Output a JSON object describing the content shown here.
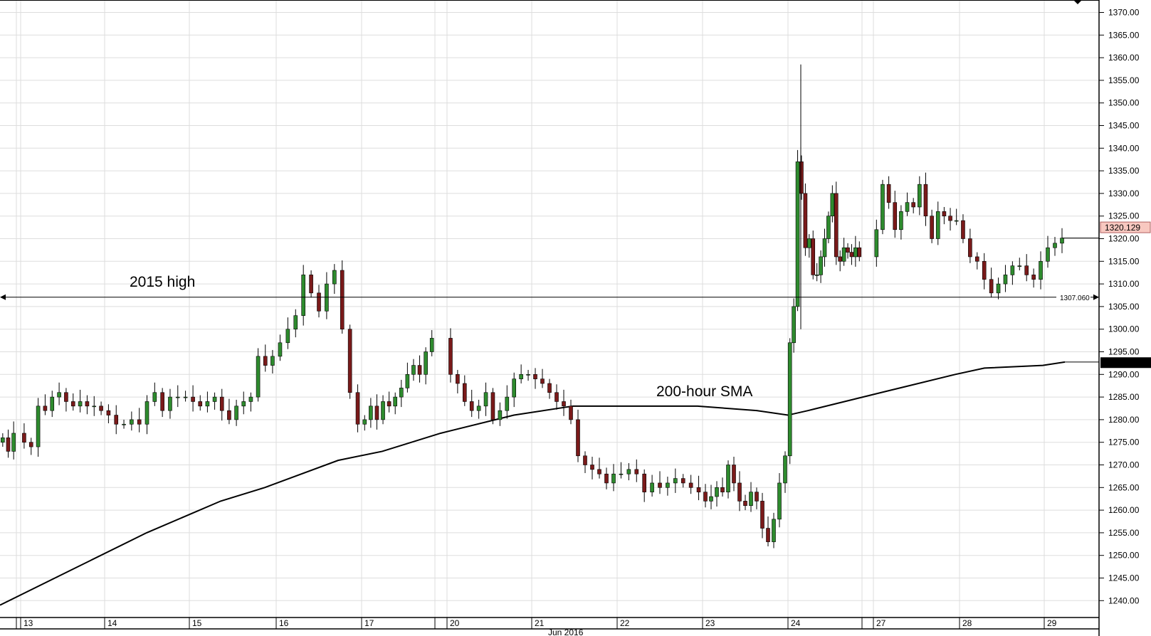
{
  "chart_data": {
    "type": "candlestick",
    "title": "",
    "xlabel": "Jun 2016",
    "ylabel": "",
    "ylim": [
      1237,
      1373
    ],
    "grid": true,
    "y_ticks": [
      "1370.00",
      "1365.00",
      "1360.00",
      "1355.00",
      "1350.00",
      "1345.00",
      "1340.00",
      "1335.00",
      "1330.00",
      "1325.00",
      "1320.00",
      "1315.00",
      "1310.00",
      "1305.00",
      "1300.00",
      "1295.00",
      "1290.00",
      "1285.00",
      "1280.00",
      "1275.00",
      "1270.00",
      "1265.00",
      "1260.00",
      "1255.00",
      "1250.00",
      "1245.00",
      "1240.00"
    ],
    "x_ticks": [
      "13",
      "14",
      "15",
      "16",
      "17",
      "20",
      "21",
      "22",
      "23",
      "24",
      "27",
      "28",
      "29"
    ],
    "month_label": "Jun 2016",
    "colors": {
      "up": "#2e8b2e",
      "down": "#7a1a1a",
      "sma": "#000000",
      "last_price_bg": "#f8c8c0",
      "sma_label_bg": "#000000"
    },
    "candle_closes_by_day": [
      {
        "day": "10",
        "closes": [
          1276,
          1273,
          1277
        ]
      },
      {
        "day": "13",
        "closes": [
          1275,
          1274,
          1283,
          1282,
          1285,
          1286,
          1284,
          1283,
          1284,
          1283,
          1283,
          1282
        ]
      },
      {
        "day": "14",
        "closes": [
          1281,
          1279,
          1279,
          1280,
          1279,
          1284,
          1286,
          1282,
          1285,
          1285,
          1285
        ]
      },
      {
        "day": "15",
        "closes": [
          1284,
          1283,
          1284,
          1285,
          1282,
          1280,
          1283,
          1284,
          1285,
          1294,
          1292,
          1294
        ]
      },
      {
        "day": "16",
        "closes": [
          1297,
          1300,
          1303,
          1312,
          1308,
          1304,
          1310,
          1313,
          1300,
          1286,
          1279
        ]
      },
      {
        "day": "17",
        "closes": [
          1280,
          1283,
          1280,
          1284,
          1283,
          1285,
          1287,
          1290,
          1292,
          1290,
          1295,
          1298
        ]
      },
      {
        "day": "20",
        "closes": [
          1290,
          1288,
          1284,
          1282,
          1283,
          1286,
          1280,
          1282,
          1285,
          1289,
          1290,
          1290
        ]
      },
      {
        "day": "21",
        "closes": [
          1289,
          1288,
          1286,
          1284,
          1283,
          1280,
          1272,
          1270,
          1269,
          1268,
          1266,
          1268
        ]
      },
      {
        "day": "22",
        "closes": [
          1268,
          1269,
          1268,
          1264,
          1266,
          1265,
          1266,
          1267,
          1266,
          1265,
          1264
        ]
      },
      {
        "day": "23",
        "closes": [
          1262,
          1263,
          1265,
          1264,
          1270,
          1266,
          1262,
          1261,
          1264,
          1262,
          1256,
          1253,
          1258,
          1266,
          1272
        ]
      },
      {
        "day": "24",
        "closes": [
          1297,
          1305,
          1337,
          1330,
          1318,
          1320,
          1312,
          1312,
          1316,
          1320,
          1325,
          1330,
          1316,
          1315,
          1318,
          1317,
          1316,
          1318,
          1316
        ]
      },
      {
        "day": "27",
        "closes": [
          1322,
          1332,
          1328,
          1322,
          1326,
          1328,
          1327,
          1332,
          1325,
          1320,
          1326,
          1325,
          1324,
          1324
        ]
      },
      {
        "day": "28",
        "closes": [
          1320,
          1316,
          1315,
          1311,
          1308,
          1310,
          1312,
          1314,
          1314,
          1312,
          1311,
          1315
        ]
      },
      {
        "day": "29",
        "closes": [
          1318,
          1319,
          1320.129
        ]
      }
    ],
    "sma": {
      "label": "200-hour SMA",
      "values": [
        1239,
        1247,
        1255,
        1262,
        1265,
        1271,
        1273,
        1277,
        1281,
        1283,
        1283,
        1283,
        1282,
        1281,
        1282,
        1286,
        1290,
        1291.4,
        1292,
        1292.739
      ],
      "last_value": "1292.739"
    },
    "high_line": {
      "label": "2015 high",
      "value": 1307.06,
      "value_label": "1307.060"
    },
    "last_price": {
      "value": 1320.129,
      "label": "1320.129"
    }
  }
}
